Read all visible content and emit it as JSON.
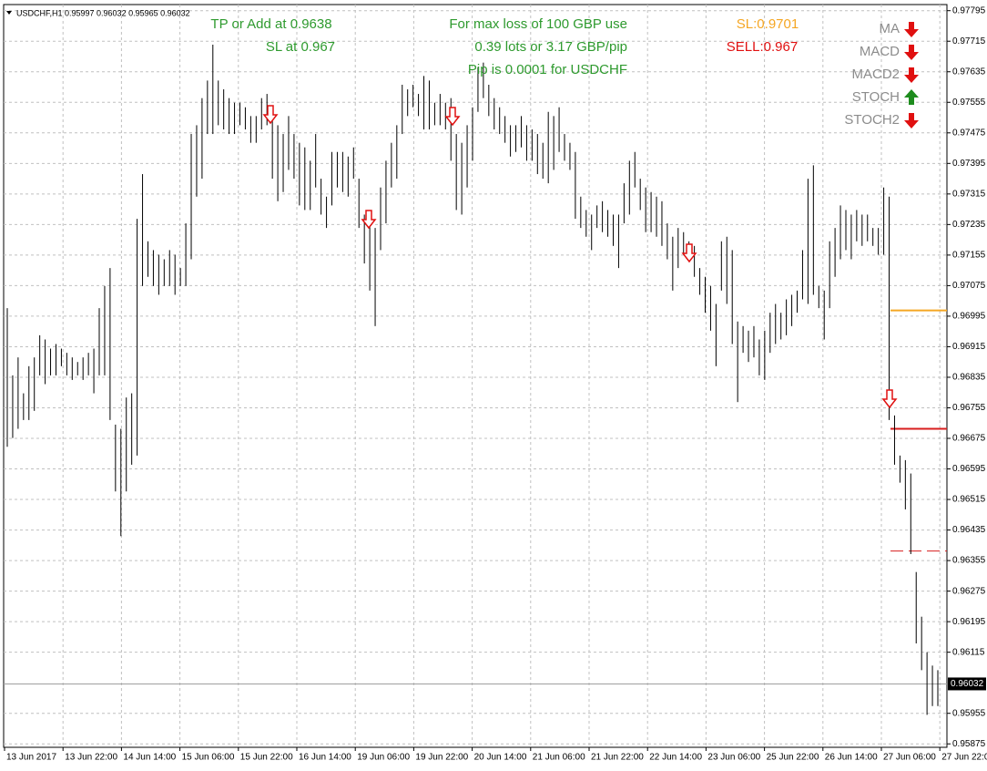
{
  "chart_data": {
    "type": "ohlc",
    "header": "USDCHF,H1  0.95997 0.96032 0.95965 0.96032",
    "color": "#000000",
    "grid": true,
    "ylim": [
      0.95866,
      0.97811
    ],
    "yticks": [
      0.97795,
      0.97715,
      0.97635,
      0.97555,
      0.97475,
      0.97395,
      0.97315,
      0.97235,
      0.97155,
      0.97075,
      0.96995,
      0.96915,
      0.96835,
      0.96755,
      0.96675,
      0.96595,
      0.96515,
      0.96435,
      0.96355,
      0.96275,
      0.96195,
      0.96115,
      0.95955,
      0.95875
    ],
    "x_labels": [
      "13 Jun 2017",
      "13 Jun 22:00",
      "14 Jun 14:00",
      "15 Jun 06:00",
      "15 Jun 22:00",
      "16 Jun 14:00",
      "19 Jun 06:00",
      "19 Jun 22:00",
      "20 Jun 14:00",
      "21 Jun 06:00",
      "21 Jun 22:00",
      "22 Jun 14:00",
      "23 Jun 06:00",
      "25 Jun 22:00",
      "26 Jun 14:00",
      "27 Jun 06:00",
      "27 Jun 22:00"
    ],
    "high": [
      0.97016,
      0.9684,
      0.96887,
      0.96793,
      0.96864,
      0.96887,
      0.96945,
      0.96934,
      0.9691,
      0.96922,
      0.9691,
      0.96899,
      0.96887,
      0.96875,
      0.96887,
      0.96899,
      0.9691,
      0.97016,
      0.97074,
      0.97121,
      0.96711,
      0.967,
      0.96782,
      0.96793,
      0.9725,
      0.97367,
      0.97191,
      0.97168,
      0.97156,
      0.97144,
      0.97168,
      0.97156,
      0.97121,
      0.97238,
      0.97472,
      0.97495,
      0.97566,
      0.97612,
      0.97706,
      0.97612,
      0.97589,
      0.97566,
      0.97554,
      0.97554,
      0.97542,
      0.97519,
      0.97519,
      0.97566,
      0.97577,
      0.97519,
      0.97495,
      0.97472,
      0.97519,
      0.97472,
      0.97449,
      0.97437,
      0.97402,
      0.97472,
      0.97355,
      0.97308,
      0.97425,
      0.97425,
      0.97425,
      0.97413,
      0.97437,
      0.97355,
      0.97261,
      0.97238,
      0.97226,
      0.97332,
      0.97402,
      0.97449,
      0.97495,
      0.97601,
      0.97589,
      0.97601,
      0.97577,
      0.97624,
      0.97612,
      0.97554,
      0.97577,
      0.97554,
      0.97566,
      0.97472,
      0.97449,
      0.97495,
      0.97542,
      0.97647,
      0.97659,
      0.97601,
      0.97566,
      0.97542,
      0.97519,
      0.97495,
      0.97495,
      0.97519,
      0.97495,
      0.97484,
      0.97472,
      0.97449,
      0.9753,
      0.97519,
      0.97542,
      0.97472,
      0.97449,
      0.97425,
      0.97308,
      0.97273,
      0.97261,
      0.97285,
      0.97296,
      0.97273,
      0.97261,
      0.97261,
      0.97343,
      0.97402,
      0.97425,
      0.97355,
      0.97332,
      0.9732,
      0.97308,
      0.97296,
      0.97238,
      0.97203,
      0.97226,
      0.97215,
      0.97191,
      0.97179,
      0.97121,
      0.97098,
      0.97074,
      0.97027,
      0.97191,
      0.97203,
      0.97168,
      0.96981,
      0.96969,
      0.96957,
      0.96969,
      0.96934,
      0.96957,
      0.97004,
      0.97027,
      0.97004,
      0.97039,
      0.97051,
      0.97062,
      0.97168,
      0.97355,
      0.9739,
      0.97074,
      0.97062,
      0.97191,
      0.97226,
      0.97285,
      0.97273,
      0.97261,
      0.97273,
      0.97261,
      0.97261,
      0.97226,
      0.97226,
      0.97332,
      0.97308,
      0.96735,
      0.9663,
      0.96618,
      0.96583,
      0.96325,
      0.96208,
      0.96115,
      0.9608,
      0.96068
    ],
    "low": [
      0.96653,
      0.96676,
      0.967,
      0.96723,
      0.96723,
      0.96747,
      0.9684,
      0.96817,
      0.9684,
      0.9684,
      0.96864,
      0.9684,
      0.96828,
      0.9684,
      0.96828,
      0.9684,
      0.96793,
      0.9684,
      0.9684,
      0.96723,
      0.96536,
      0.96419,
      0.96536,
      0.96606,
      0.9663,
      0.97074,
      0.97098,
      0.97074,
      0.97051,
      0.97074,
      0.97074,
      0.97051,
      0.97074,
      0.97074,
      0.97144,
      0.97308,
      0.97355,
      0.97472,
      0.97472,
      0.97495,
      0.97484,
      0.97472,
      0.97472,
      0.97495,
      0.97484,
      0.97449,
      0.97449,
      0.97484,
      0.97495,
      0.97355,
      0.97296,
      0.9732,
      0.97378,
      0.97355,
      0.97285,
      0.97273,
      0.97273,
      0.97332,
      0.97261,
      0.97226,
      0.97285,
      0.97332,
      0.9732,
      0.97308,
      0.97355,
      0.97226,
      0.97133,
      0.97062,
      0.96969,
      0.97168,
      0.97238,
      0.97332,
      0.97355,
      0.97472,
      0.97519,
      0.97542,
      0.97519,
      0.97484,
      0.97484,
      0.97495,
      0.97495,
      0.97484,
      0.97402,
      0.97273,
      0.97261,
      0.97332,
      0.97402,
      0.9753,
      0.97566,
      0.97519,
      0.97484,
      0.97472,
      0.97449,
      0.97413,
      0.97425,
      0.97437,
      0.97402,
      0.97402,
      0.97367,
      0.97355,
      0.97343,
      0.97378,
      0.97425,
      0.97402,
      0.97378,
      0.9725,
      0.97226,
      0.97203,
      0.97168,
      0.97226,
      0.97215,
      0.97203,
      0.97179,
      0.97121,
      0.97238,
      0.97261,
      0.97332,
      0.97273,
      0.97215,
      0.97215,
      0.97203,
      0.97179,
      0.97144,
      0.97062,
      0.97121,
      0.97156,
      0.97144,
      0.97098,
      0.97051,
      0.97004,
      0.96957,
      0.96864,
      0.97062,
      0.97027,
      0.96922,
      0.9677,
      0.96899,
      0.96875,
      0.96887,
      0.9684,
      0.96828,
      0.96899,
      0.96922,
      0.96934,
      0.96945,
      0.96969,
      0.97004,
      0.97039,
      0.97027,
      0.97051,
      0.97016,
      0.96934,
      0.97016,
      0.97098,
      0.97144,
      0.97168,
      0.97144,
      0.97191,
      0.97179,
      0.97191,
      0.97179,
      0.97156,
      0.97156,
      0.96723,
      0.96606,
      0.96559,
      0.96489,
      0.96372,
      0.96138,
      0.96068,
      0.95951,
      0.95974,
      0.95974
    ],
    "current_price": 0.96032,
    "levels": [
      {
        "value": 0.9701,
        "color": "#f5a623",
        "dashed": false
      },
      {
        "value": 0.967,
        "color": "#d81e1e",
        "dashed": false
      },
      {
        "value": 0.9638,
        "color": "#d81e1e",
        "dashed": true
      }
    ],
    "annotations": [
      {
        "text": "TP or Add at 0.9638",
        "color": "#2e9a2e"
      },
      {
        "text": "SL at 0.967",
        "color": "#2e9a2e"
      },
      {
        "text": "For max loss of 100 GBP use",
        "color": "#2e9a2e"
      },
      {
        "text": "0.39 lots or 3.17 GBP/pip",
        "color": "#2e9a2e"
      },
      {
        "text": "Pip is 0.0001 for USDCHF",
        "color": "#2e9a2e"
      },
      {
        "text": "SL:0.9701",
        "color": "#f5a623"
      },
      {
        "text": "SELL:0.967",
        "color": "#e01010"
      }
    ],
    "indicators": [
      {
        "name": "MA",
        "signal": "down"
      },
      {
        "name": "MACD",
        "signal": "down"
      },
      {
        "name": "MACD2",
        "signal": "down"
      },
      {
        "name": "STOCH",
        "signal": "up"
      },
      {
        "name": "STOCH2",
        "signal": "down"
      }
    ]
  }
}
